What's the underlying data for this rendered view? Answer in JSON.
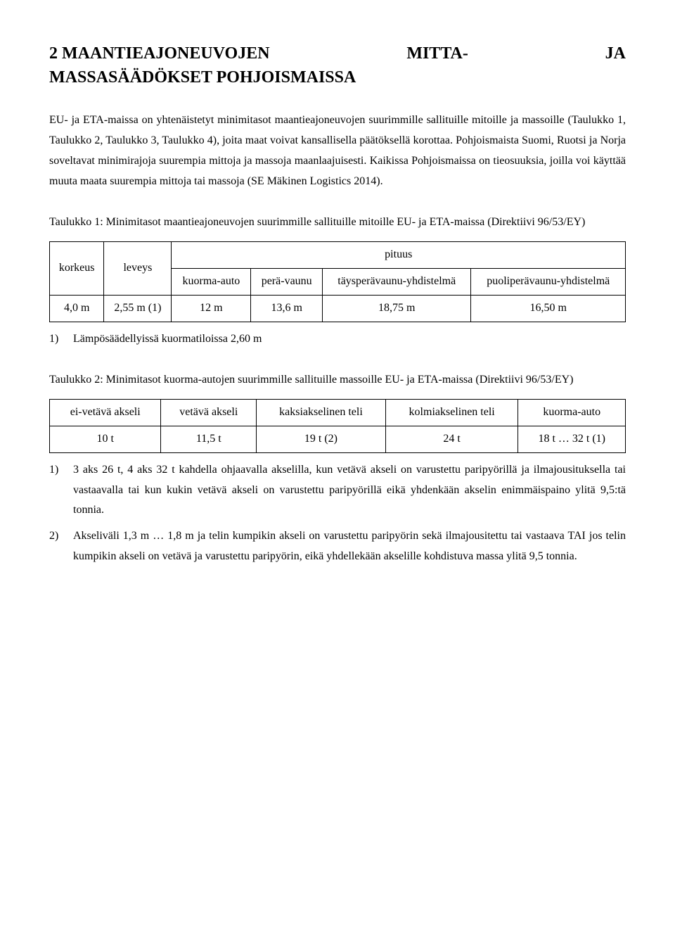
{
  "heading": {
    "line1_left": "2 MAANTIEAJONEUVOJEN",
    "line1_mid": "MITTA-",
    "line1_right": "JA",
    "line2": "MASSASÄÄDÖKSET POHJOISMAISSA"
  },
  "paragraph1": "EU- ja ETA-maissa on yhtenäistetyt minimitasot maantieajoneuvojen suurimmille sallituille mitoille ja massoille (Taulukko 1, Taulukko 2, Taulukko 3, Taulukko 4), joita maat voivat kansallisella päätöksellä korottaa. Pohjoismaista Suomi, Ruotsi ja Norja soveltavat minimirajoja suurempia mittoja ja massoja maanlaajuisesti. Kaikissa Pohjoismaissa on tieosuuksia, joilla voi käyttää muuta maata suurempia mittoja tai massoja (SE Mäkinen Logistics 2014).",
  "table1": {
    "caption": "Taulukko 1: Minimitasot maantieajoneuvojen suurimmille sallituille mitoille EU- ja ETA-maissa (Direktiivi 96/53/EY)",
    "headers": {
      "korkeus": "korkeus",
      "leveys": "leveys",
      "pituus": "pituus",
      "kuorma_auto": "kuorma-auto",
      "peravaunu": "perä-vaunu",
      "taysperavaunu": "täysperävaunu-yhdistelmä",
      "puoliperavaunu": "puoliperävaunu-yhdistelmä"
    },
    "row": {
      "korkeus": "4,0 m",
      "leveys": "2,55 m (1)",
      "kuorma_auto": "12 m",
      "peravaunu": "13,6 m",
      "taysperavaunu": "18,75 m",
      "puoliperavaunu": "16,50 m"
    },
    "footnotes": [
      "Lämpösäädellyissä kuormatiloissa 2,60 m"
    ]
  },
  "table2": {
    "caption": "Taulukko 2: Minimitasot kuorma-autojen suurimmille sallituille massoille EU- ja ETA-maissa (Direktiivi 96/53/EY)",
    "headers": {
      "ei_vetava": "ei-vetävä akseli",
      "vetava": "vetävä akseli",
      "kaksiakselinen": "kaksiakselinen teli",
      "kolmiakselinen": "kolmiakselinen teli",
      "kuorma_auto": "kuorma-auto"
    },
    "row": {
      "ei_vetava": "10 t",
      "vetava": "11,5 t",
      "kaksiakselinen": "19 t (2)",
      "kolmiakselinen": "24 t",
      "kuorma_auto": "18 t … 32 t (1)"
    },
    "footnotes": [
      "3 aks 26 t, 4 aks 32 t kahdella ohjaavalla akselilla, kun vetävä akseli on varustettu paripyörillä ja ilmajousituksella tai vastaavalla tai kun kukin vetävä akseli on varustettu paripyörillä eikä yhdenkään akselin enimmäispaino ylitä 9,5:tä tonnia.",
      "Akseliväli 1,3 m … 1,8 m ja telin kumpikin akseli on varustettu paripyörin sekä ilmajousitettu tai vastaava TAI jos telin kumpikin akseli on vetävä ja varustettu paripyörin, eikä yhdellekään akselille kohdistuva massa ylitä 9,5 tonnia."
    ]
  }
}
